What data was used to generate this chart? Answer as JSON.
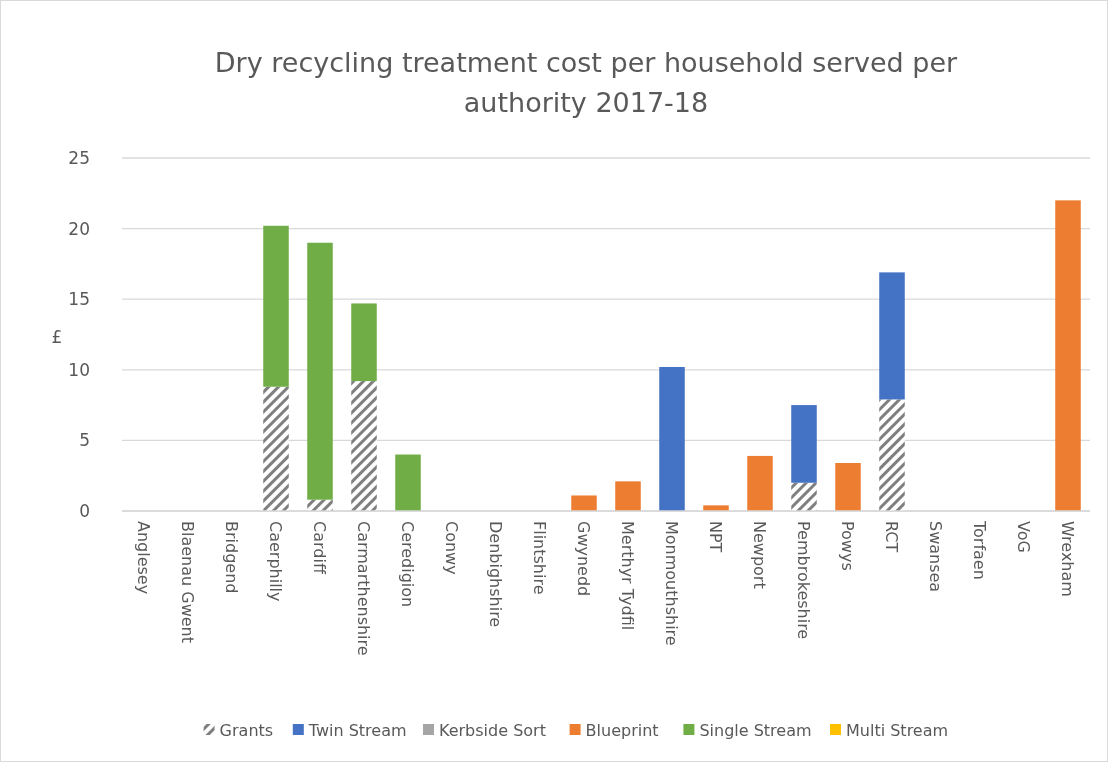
{
  "chart_data": {
    "type": "bar",
    "title": "Dry recycling treatment cost per household served per authority 2017-18",
    "ylabel": "£",
    "stacked": true,
    "categories": [
      "Anglesey",
      "Blaenau Gwent",
      "Bridgend",
      "Caerphilly",
      "Cardiff",
      "Carmarthenshire",
      "Ceredigion",
      "Conwy",
      "Denbighshire",
      "Flintshire",
      "Gwynedd",
      "Merthyr Tydfil",
      "Monmouthshire",
      "NPT",
      "Newport",
      "Pembrokeshire",
      "Powys",
      "RCT",
      "Swansea",
      "Torfaen",
      "VoG",
      "Wrexham"
    ],
    "series": [
      {
        "name": "Grants",
        "color": "#7f7f7f",
        "values": [
          null,
          null,
          null,
          8.8,
          0.8,
          9.2,
          null,
          null,
          null,
          null,
          null,
          null,
          null,
          null,
          null,
          2.0,
          null,
          7.9,
          null,
          null,
          null,
          null
        ]
      },
      {
        "name": "Twin Stream",
        "color": "#4472c4",
        "values": [
          null,
          null,
          null,
          null,
          null,
          null,
          null,
          null,
          null,
          null,
          null,
          null,
          10.2,
          null,
          null,
          5.5,
          null,
          9.0,
          null,
          null,
          null,
          null
        ]
      },
      {
        "name": "Kerbside Sort",
        "color": "#a5a5a5",
        "values": [
          null,
          null,
          null,
          null,
          null,
          null,
          null,
          null,
          null,
          null,
          null,
          null,
          null,
          null,
          null,
          null,
          null,
          null,
          null,
          null,
          null,
          null
        ]
      },
      {
        "name": "Blueprint",
        "color": "#ed7d31",
        "values": [
          null,
          null,
          null,
          null,
          null,
          null,
          null,
          null,
          null,
          null,
          1.1,
          2.1,
          null,
          0.4,
          3.9,
          null,
          3.4,
          null,
          null,
          null,
          null,
          22.0
        ]
      },
      {
        "name": "Single Stream",
        "color": "#70ad47",
        "values": [
          null,
          null,
          null,
          11.4,
          18.2,
          5.5,
          4.0,
          null,
          null,
          null,
          null,
          null,
          null,
          null,
          null,
          null,
          null,
          null,
          null,
          null,
          null,
          null
        ]
      },
      {
        "name": "Multi Stream",
        "color": "#ffc000",
        "values": [
          null,
          null,
          null,
          null,
          null,
          null,
          null,
          null,
          null,
          null,
          null,
          null,
          null,
          null,
          null,
          null,
          null,
          null,
          null,
          null,
          null,
          null
        ]
      }
    ],
    "ylim": [
      0,
      25
    ],
    "yticks": [
      0,
      5,
      10,
      15,
      20,
      25
    ],
    "grid": "y",
    "legend": "bottom"
  }
}
